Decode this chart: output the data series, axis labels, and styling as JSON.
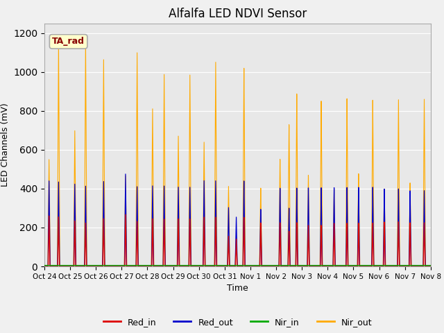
{
  "title": "Alfalfa LED NDVI Sensor",
  "ylabel": "LED Channels (mV)",
  "xlabel": "Time",
  "annotation": "TA_rad",
  "ylim": [
    0,
    1250
  ],
  "xlim": [
    0,
    15
  ],
  "background_color": "#f0f0f0",
  "plot_bg_color": "#e8e8e8",
  "colors": {
    "Red_in": "#dd0000",
    "Red_out": "#0000cc",
    "Nir_in": "#00aa00",
    "Nir_out": "#ffaa00"
  },
  "x_tick_labels": [
    "Oct 24",
    "Oct 25",
    "Oct 26",
    "Oct 27",
    "Oct 28",
    "Oct 29",
    "Oct 30",
    "Oct 31",
    "Nov 1",
    "Nov 2",
    "Nov 3",
    "Nov 4",
    "Nov 5",
    "Nov 6",
    "Nov 7",
    "Nov 8"
  ],
  "annotation_box_facecolor": "#ffffcc",
  "annotation_box_edgecolor": "#aaaaaa",
  "annotation_text_color": "#880000",
  "spike_groups": [
    {
      "day": 0,
      "spikes": [
        {
          "t": 0.18,
          "nir_out": 550,
          "red_out": 440,
          "red_in": 260
        },
        {
          "t": 0.55,
          "nir_out": 1150,
          "red_out": 435,
          "red_in": 255
        }
      ]
    },
    {
      "day": 1,
      "spikes": [
        {
          "t": 0.18,
          "nir_out": 700,
          "red_out": 425,
          "red_in": 235
        },
        {
          "t": 0.6,
          "nir_out": 1170,
          "red_out": 415,
          "red_in": 225
        }
      ]
    },
    {
      "day": 2,
      "spikes": [
        {
          "t": 0.3,
          "nir_out": 1070,
          "red_out": 440,
          "red_in": 248
        }
      ]
    },
    {
      "day": 3,
      "spikes": [
        {
          "t": 0.15,
          "nir_out": 470,
          "red_out": 480,
          "red_in": 270
        },
        {
          "t": 0.6,
          "nir_out": 1110,
          "red_out": 415,
          "red_in": 235
        }
      ]
    },
    {
      "day": 4,
      "spikes": [
        {
          "t": 0.2,
          "nir_out": 820,
          "red_out": 420,
          "red_in": 250
        },
        {
          "t": 0.65,
          "nir_out": 1000,
          "red_out": 420,
          "red_in": 248
        }
      ]
    },
    {
      "day": 5,
      "spikes": [
        {
          "t": 0.2,
          "nir_out": 680,
          "red_out": 415,
          "red_in": 250
        },
        {
          "t": 0.65,
          "nir_out": 1000,
          "red_out": 415,
          "red_in": 250
        }
      ]
    },
    {
      "day": 6,
      "spikes": [
        {
          "t": 0.2,
          "nir_out": 650,
          "red_out": 450,
          "red_in": 260
        },
        {
          "t": 0.65,
          "nir_out": 1070,
          "red_out": 450,
          "red_in": 260
        }
      ]
    },
    {
      "day": 7,
      "spikes": [
        {
          "t": 0.15,
          "nir_out": 420,
          "red_out": 310,
          "red_in": 160
        },
        {
          "t": 0.45,
          "nir_out": 160,
          "red_out": 260,
          "red_in": 145
        },
        {
          "t": 0.75,
          "nir_out": 1040,
          "red_out": 450,
          "red_in": 260
        }
      ]
    },
    {
      "day": 8,
      "spikes": [
        {
          "t": 0.4,
          "nir_out": 410,
          "red_out": 300,
          "red_in": 230
        }
      ]
    },
    {
      "day": 9,
      "spikes": [
        {
          "t": 0.15,
          "nir_out": 560,
          "red_out": 410,
          "red_in": 230
        },
        {
          "t": 0.5,
          "nir_out": 740,
          "red_out": 305,
          "red_in": 185
        },
        {
          "t": 0.8,
          "nir_out": 900,
          "red_out": 410,
          "red_in": 230
        }
      ]
    },
    {
      "day": 10,
      "spikes": [
        {
          "t": 0.25,
          "nir_out": 475,
          "red_out": 410,
          "red_in": 215
        },
        {
          "t": 0.75,
          "nir_out": 860,
          "red_out": 410,
          "red_in": 215
        }
      ]
    },
    {
      "day": 11,
      "spikes": [
        {
          "t": 0.25,
          "nir_out": 400,
          "red_out": 410,
          "red_in": 225
        },
        {
          "t": 0.75,
          "nir_out": 870,
          "red_out": 410,
          "red_in": 225
        }
      ]
    },
    {
      "day": 12,
      "spikes": [
        {
          "t": 0.2,
          "nir_out": 480,
          "red_out": 410,
          "red_in": 225
        },
        {
          "t": 0.75,
          "nir_out": 860,
          "red_out": 410,
          "red_in": 225
        }
      ]
    },
    {
      "day": 13,
      "spikes": [
        {
          "t": 0.2,
          "nir_out": 400,
          "red_out": 400,
          "red_in": 230
        },
        {
          "t": 0.75,
          "nir_out": 860,
          "red_out": 400,
          "red_in": 230
        }
      ]
    },
    {
      "day": 14,
      "spikes": [
        {
          "t": 0.2,
          "nir_out": 430,
          "red_out": 390,
          "red_in": 225
        },
        {
          "t": 0.75,
          "nir_out": 860,
          "red_out": 390,
          "red_in": 225
        }
      ]
    }
  ]
}
